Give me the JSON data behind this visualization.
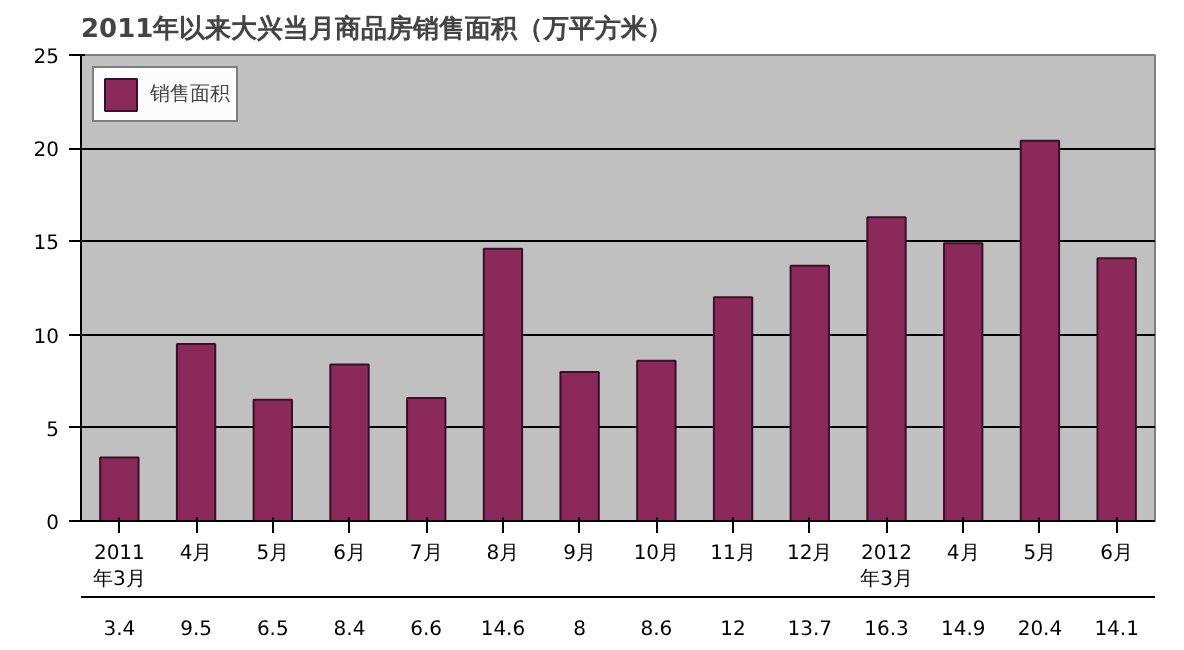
{
  "chart_data": {
    "type": "bar",
    "title": "2011年以来大兴当月商品房销售面积（万平方米）",
    "categories": [
      "2011年3月",
      "4月",
      "5月",
      "6月",
      "7月",
      "8月",
      "9月",
      "10月",
      "11月",
      "12月",
      "2012年3月",
      "4月",
      "5月",
      "6月"
    ],
    "series": [
      {
        "name": "销售面积",
        "color": "#8b2a5a",
        "values": [
          3.4,
          9.5,
          6.5,
          8.4,
          6.6,
          14.6,
          8,
          8.6,
          12,
          13.7,
          16.3,
          14.9,
          20.4,
          14.1
        ]
      }
    ],
    "ylim": [
      0,
      25
    ],
    "yticks": [
      0,
      5,
      10,
      15,
      20,
      25
    ],
    "grid": "y",
    "data_labels": true,
    "legend": "top left"
  }
}
